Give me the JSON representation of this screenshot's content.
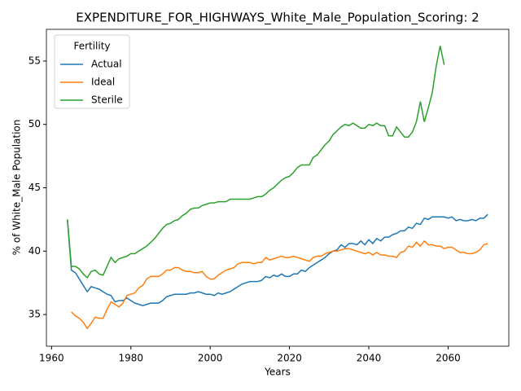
{
  "chart_data": {
    "type": "line",
    "title": "EXPENDITURE_FOR_HIGHWAYS_White_Male_Population_Scoring: 2",
    "xlabel": "Years",
    "ylabel": "% of White_Male Population",
    "legend_title": "Fertility",
    "legend": "upper left",
    "x": [
      1964,
      1965,
      1966,
      1967,
      1968,
      1969,
      1970,
      1971,
      1972,
      1973,
      1974,
      1975,
      1976,
      1977,
      1978,
      1979,
      1980,
      1981,
      1982,
      1983,
      1984,
      1985,
      1986,
      1987,
      1988,
      1989,
      1990,
      1991,
      1992,
      1993,
      1994,
      1995,
      1996,
      1997,
      1998,
      1999,
      2000,
      2001,
      2002,
      2003,
      2004,
      2005,
      2006,
      2007,
      2008,
      2009,
      2010,
      2011,
      2012,
      2013,
      2014,
      2015,
      2016,
      2017,
      2018,
      2019,
      2020,
      2021,
      2022,
      2023,
      2024,
      2025,
      2026,
      2027,
      2028,
      2029,
      2030,
      2031,
      2032,
      2033,
      2034,
      2035,
      2036,
      2037,
      2038,
      2039,
      2040,
      2041,
      2042,
      2043,
      2044,
      2045,
      2046,
      2047,
      2048,
      2049,
      2050,
      2051,
      2052,
      2053,
      2054,
      2055,
      2056,
      2057,
      2058,
      2059,
      2060,
      2061,
      2062,
      2063,
      2064,
      2065,
      2066,
      2067,
      2068,
      2069,
      2070
    ],
    "series": [
      {
        "name": "Actual",
        "color": "#1f77b4",
        "values": [
          42.5,
          38.5,
          38.3,
          37.8,
          37.3,
          36.8,
          37.2,
          37.1,
          37.0,
          36.8,
          36.6,
          36.5,
          36.0,
          36.1,
          36.1,
          36.3,
          36.1,
          35.9,
          35.8,
          35.7,
          35.8,
          35.9,
          35.9,
          35.9,
          36.1,
          36.4,
          36.5,
          36.6,
          36.6,
          36.6,
          36.6,
          36.7,
          36.7,
          36.8,
          36.7,
          36.6,
          36.6,
          36.5,
          36.7,
          36.6,
          36.7,
          36.8,
          37.0,
          37.2,
          37.4,
          37.5,
          37.6,
          37.6,
          37.6,
          37.7,
          38.0,
          37.9,
          38.1,
          38.0,
          38.2,
          38.0,
          38.0,
          38.2,
          38.2,
          38.5,
          38.4,
          38.7,
          38.9,
          39.1,
          39.3,
          39.5,
          39.8,
          40.0,
          40.1,
          40.5,
          40.3,
          40.6,
          40.6,
          40.5,
          40.8,
          40.5,
          40.9,
          40.6,
          41.0,
          40.8,
          41.1,
          41.1,
          41.3,
          41.4,
          41.6,
          41.6,
          41.9,
          41.8,
          42.2,
          42.1,
          42.6,
          42.5,
          42.7,
          42.7,
          42.7,
          42.7,
          42.6,
          42.7,
          42.4,
          42.5,
          42.4,
          42.4,
          42.5,
          42.4,
          42.6,
          42.6,
          42.9
        ]
      },
      {
        "name": "Ideal",
        "color": "#ff7f0e",
        "values": [
          null,
          35.2,
          34.9,
          34.7,
          34.4,
          33.9,
          34.3,
          34.8,
          34.7,
          34.7,
          35.4,
          36.0,
          35.8,
          35.6,
          35.9,
          36.5,
          36.6,
          36.7,
          37.1,
          37.3,
          37.8,
          38.0,
          38.0,
          38.0,
          38.2,
          38.5,
          38.5,
          38.7,
          38.7,
          38.5,
          38.4,
          38.4,
          38.3,
          38.3,
          38.4,
          38.0,
          37.8,
          37.8,
          38.1,
          38.3,
          38.5,
          38.6,
          38.7,
          39.0,
          39.1,
          39.1,
          39.1,
          39.0,
          39.1,
          39.1,
          39.5,
          39.3,
          39.4,
          39.5,
          39.6,
          39.5,
          39.5,
          39.6,
          39.5,
          39.4,
          39.3,
          39.2,
          39.5,
          39.6,
          39.6,
          39.8,
          39.9,
          40.0,
          40.0,
          40.1,
          40.2,
          40.2,
          40.1,
          40.0,
          39.9,
          39.8,
          39.9,
          39.7,
          39.9,
          39.7,
          39.7,
          39.6,
          39.6,
          39.5,
          39.9,
          40.0,
          40.4,
          40.3,
          40.7,
          40.4,
          40.8,
          40.5,
          40.5,
          40.4,
          40.4,
          40.2,
          40.3,
          40.3,
          40.1,
          39.9,
          39.9,
          39.8,
          39.8,
          39.9,
          40.1,
          40.5,
          40.6
        ]
      },
      {
        "name": "Sterile",
        "color": "#2ca02c",
        "values": [
          42.5,
          38.8,
          38.8,
          38.6,
          38.2,
          37.9,
          38.4,
          38.5,
          38.2,
          38.1,
          38.8,
          39.5,
          39.1,
          39.4,
          39.5,
          39.6,
          39.8,
          39.8,
          40.0,
          40.2,
          40.4,
          40.7,
          41.0,
          41.4,
          41.8,
          42.1,
          42.2,
          42.4,
          42.5,
          42.8,
          43.0,
          43.3,
          43.4,
          43.4,
          43.6,
          43.7,
          43.8,
          43.8,
          43.9,
          43.9,
          43.9,
          44.1,
          44.1,
          44.1,
          44.1,
          44.1,
          44.1,
          44.2,
          44.3,
          44.3,
          44.5,
          44.8,
          45.0,
          45.3,
          45.6,
          45.8,
          45.9,
          46.2,
          46.6,
          46.8,
          46.8,
          46.8,
          47.4,
          47.6,
          48.0,
          48.4,
          48.7,
          49.2,
          49.5,
          49.8,
          50.0,
          49.9,
          50.1,
          49.9,
          49.7,
          49.7,
          50.0,
          49.9,
          50.1,
          49.9,
          49.9,
          49.1,
          49.1,
          49.8,
          49.4,
          49.0,
          49.0,
          49.4,
          50.2,
          51.8,
          50.2,
          51.3,
          52.5,
          54.6,
          56.2,
          54.7,
          null,
          null,
          null,
          null,
          null,
          null,
          null,
          null,
          null,
          null,
          null
        ]
      }
    ],
    "xlim": [
      1958.7,
      2075.3
    ],
    "xticks": [
      1960,
      1980,
      2000,
      2020,
      2040,
      2060
    ],
    "ylim": [
      32.5,
      57.5
    ],
    "yticks": [
      35,
      40,
      45,
      50,
      55
    ],
    "grid": false
  }
}
